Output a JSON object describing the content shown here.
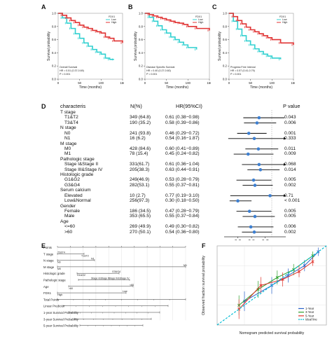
{
  "panels": {
    "A": {
      "letter": "A",
      "ylabel": "Survival probability",
      "xlabel": "Time (months)",
      "legend_title": "FDX1",
      "legend": [
        "Low",
        "High"
      ],
      "stats_name": "Overall Survival",
      "stats_hr": "HR = 0.51 (0.37-0.69)",
      "stats_p": "P < 0.001",
      "xticks": [
        "0",
        "50",
        "100",
        "150"
      ],
      "yticks": [
        "0.0",
        "0.2",
        "0.4",
        "0.6",
        "0.8",
        "1.0"
      ]
    },
    "B": {
      "letter": "B",
      "ylabel": "Survival probability",
      "xlabel": "Time (months)",
      "legend_title": "FDX1",
      "legend": [
        "Low",
        "High"
      ],
      "stats_name": "Disease Specific Survival",
      "stats_hr": "HR = 0.40 (0.27-0.60)",
      "stats_p": "P < 0.001",
      "xticks": [
        "0",
        "50",
        "100",
        "150"
      ],
      "yticks": [
        "0.0",
        "0.2",
        "0.4",
        "0.6",
        "0.8",
        "1.0"
      ]
    },
    "C": {
      "letter": "C",
      "ylabel": "Survival probability",
      "xlabel": "Time (months)",
      "legend_title": "FDX1",
      "legend": [
        "Low",
        "High"
      ],
      "stats_name": "Progress Free Interval",
      "stats_hr": "HR = 0.57 (0.41-0.79)",
      "stats_p": "P < 0.001",
      "xticks": [
        "0",
        "50",
        "100",
        "150"
      ],
      "yticks": [
        "0.0",
        "0.2",
        "0.4",
        "0.6",
        "0.8",
        "1.0"
      ]
    },
    "D": {
      "letter": "D"
    },
    "E": {
      "letter": "E"
    },
    "F": {
      "letter": "F"
    }
  },
  "forest": {
    "headers": {
      "characteris": "characteris",
      "n": "N(%)",
      "hr": "HR(95%CI)",
      "p": "P value"
    },
    "rows": [
      {
        "label": "T stage",
        "n": "",
        "hr": "",
        "p": "",
        "indent": 0
      },
      {
        "label": "T1&T2",
        "n": "349 (64.8)",
        "hr": "0.61 (0.38−0.98)",
        "p": "0.043",
        "indent": 1,
        "est": 0.61,
        "lo": 0.38,
        "hi": 0.98
      },
      {
        "label": "T3&T4",
        "n": "190 (35.2)",
        "hr": "0.58 (0.39−0.86)",
        "p": "0.006",
        "indent": 1,
        "est": 0.58,
        "lo": 0.39,
        "hi": 0.86
      },
      {
        "label": "N stage",
        "n": "",
        "hr": "",
        "p": "",
        "indent": 0
      },
      {
        "label": "N0",
        "n": "241 (93.8)",
        "hr": "0.46 (0.29−0.72)",
        "p": "0.001",
        "indent": 1,
        "est": 0.46,
        "lo": 0.29,
        "hi": 0.72
      },
      {
        "label": "N1",
        "n": "16 (6.2)",
        "hr": "0.54 (0.16−1.87)",
        "p": "0.333",
        "indent": 1,
        "est": 0.54,
        "lo": 0.16,
        "hi": 1.87
      },
      {
        "label": "M stage",
        "n": "",
        "hr": "",
        "p": "",
        "indent": 0
      },
      {
        "label": "M0",
        "n": "428 (84.6)",
        "hr": "0.60 (0.41−0.89)",
        "p": "0.011",
        "indent": 1,
        "est": 0.6,
        "lo": 0.41,
        "hi": 0.89
      },
      {
        "label": "M1",
        "n": "78 (15.4)",
        "hr": "0.45 (0.24−0.82)",
        "p": "0.009",
        "indent": 1,
        "est": 0.45,
        "lo": 0.24,
        "hi": 0.82
      },
      {
        "label": "Pathologic stage",
        "n": "",
        "hr": "",
        "p": "",
        "indent": 0
      },
      {
        "label": "Stage I&Stage II",
        "n": "331(61.7)",
        "hr": "0.61 (0.36−1.04)",
        "p": "0.068",
        "indent": 1,
        "est": 0.61,
        "lo": 0.36,
        "hi": 1.04
      },
      {
        "label": "Stage III&Stage IV",
        "n": "205(38.3)",
        "hr": "0.63 (0.44−0.91)",
        "p": "0.014",
        "indent": 1,
        "est": 0.63,
        "lo": 0.44,
        "hi": 0.91
      },
      {
        "label": "Histologic grade",
        "n": "",
        "hr": "",
        "p": "",
        "indent": 0
      },
      {
        "label": "G1&G2",
        "n": "249(46.9)",
        "hr": "0.53 (0.28−0.79)",
        "p": "0.005",
        "indent": 1,
        "est": 0.53,
        "lo": 0.28,
        "hi": 0.79
      },
      {
        "label": "G3&G4",
        "n": "282(53.1)",
        "hr": "0.55 (0.37−0.81)",
        "p": "0.002",
        "indent": 1,
        "est": 0.55,
        "lo": 0.37,
        "hi": 0.81
      },
      {
        "label": "Serum calcium",
        "n": "",
        "hr": "",
        "p": "",
        "indent": 0
      },
      {
        "label": "Elevated",
        "n": "10 (2.7)",
        "hr": "0.77 (0.19−3.10)",
        "p": "0.71",
        "indent": 1,
        "est": 0.77,
        "lo": 0.19,
        "hi": 3.1
      },
      {
        "label": "Low&Normal",
        "n": "256(97.3)",
        "hr": "0.30 (0.18−0.50)",
        "p": "< 0.001",
        "indent": 1,
        "est": 0.3,
        "lo": 0.18,
        "hi": 0.5
      },
      {
        "label": "Gender",
        "n": "",
        "hr": "",
        "p": "",
        "indent": 0
      },
      {
        "label": "Female",
        "n": "186 (34.5)",
        "hr": "0.47 (0.28−0.79)",
        "p": "0.005",
        "indent": 1,
        "est": 0.47,
        "lo": 0.28,
        "hi": 0.79
      },
      {
        "label": "Male",
        "n": "353 (65.5)",
        "hr": "0.55 (0.37−0.84)",
        "p": "0.005",
        "indent": 1,
        "est": 0.55,
        "lo": 0.37,
        "hi": 0.84
      },
      {
        "label": "Age",
        "n": "",
        "hr": "",
        "p": "",
        "indent": 0
      },
      {
        "label": "<=60",
        "n": "269 (49.9)",
        "hr": "0.49 (0.30−0.82)",
        "p": "0.006",
        "indent": 1,
        "est": 0.49,
        "lo": 0.3,
        "hi": 0.82
      },
      {
        "label": ">60",
        "n": "270 (50.1)",
        "hr": "0.54 (0.36−0.80)",
        "p": "0.002",
        "indent": 1,
        "est": 0.54,
        "lo": 0.36,
        "hi": 0.8
      }
    ],
    "axis_ticks": [
      "0.3",
      "0.5",
      "0.7"
    ],
    "point_color": "#3d7fd0"
  },
  "nomogram": {
    "labels": [
      "Points",
      "T stage",
      "N stage",
      "M stage",
      "Histologic grade",
      "Pathologic stage",
      "Age",
      "FDX1",
      "Total Points",
      "Linear Predictor",
      "1-year Survival Probability",
      "3-year Survival Probability",
      "5-year Survival Probability"
    ],
    "items": {
      "t1": "T3&T4",
      "t2": "T1&T2",
      "n1": "N1",
      "n0": "N0",
      "m1": "M1",
      "m0": "M0",
      "g1": "G3&G4",
      "g2": "G1&G2",
      "s1": "Stage III&Stage IV",
      "s2": "Stage I&Stage II",
      "a1": ">60",
      "a2": "<60",
      "f1": "Low",
      "f2": "High"
    }
  },
  "calibration": {
    "ylabel": "Observed fraction survival probability",
    "xlabel": "Nomogram predicted survival probability",
    "legend": [
      "1-Year",
      "3-Year",
      "5-Year",
      "Ideal line"
    ],
    "colors": [
      "#2a62c9",
      "#2ca02c",
      "#e0342c",
      "#00bcd4"
    ]
  },
  "chart_data": [
    {
      "type": "line",
      "panel": "A",
      "title": "",
      "xlabel": "Time (months)",
      "ylabel": "Survival probability",
      "ylim": [
        0,
        1
      ],
      "xlim": [
        0,
        150
      ],
      "series": [
        {
          "name": "Low",
          "color": "#30d0d0",
          "x": [
            0,
            10,
            20,
            30,
            40,
            50,
            60,
            70,
            80,
            90,
            100,
            110,
            120,
            130
          ],
          "y": [
            1.0,
            0.93,
            0.85,
            0.77,
            0.69,
            0.62,
            0.55,
            0.5,
            0.45,
            0.41,
            0.38,
            0.32,
            0.3,
            0.3
          ]
        },
        {
          "name": "High",
          "color": "#e03333",
          "x": [
            0,
            10,
            20,
            30,
            40,
            50,
            60,
            70,
            80,
            90,
            100,
            110,
            120,
            130,
            150
          ],
          "y": [
            1.0,
            0.97,
            0.93,
            0.89,
            0.86,
            0.82,
            0.79,
            0.77,
            0.74,
            0.72,
            0.7,
            0.64,
            0.62,
            0.58,
            0.55
          ]
        }
      ]
    },
    {
      "type": "line",
      "panel": "B",
      "title": "",
      "xlabel": "Time (months)",
      "ylabel": "Survival probability",
      "ylim": [
        0,
        1
      ],
      "xlim": [
        0,
        150
      ],
      "series": [
        {
          "name": "Low",
          "color": "#30d0d0",
          "x": [
            0,
            10,
            20,
            30,
            40,
            50,
            60,
            70,
            80,
            90,
            100,
            120
          ],
          "y": [
            1.0,
            0.94,
            0.88,
            0.81,
            0.75,
            0.7,
            0.64,
            0.6,
            0.56,
            0.52,
            0.48,
            0.45
          ]
        },
        {
          "name": "High",
          "color": "#e03333",
          "x": [
            0,
            10,
            20,
            30,
            40,
            50,
            60,
            70,
            80,
            90,
            100,
            120,
            150
          ],
          "y": [
            1.0,
            0.98,
            0.96,
            0.94,
            0.92,
            0.9,
            0.88,
            0.86,
            0.85,
            0.83,
            0.8,
            0.77,
            0.74
          ]
        }
      ]
    },
    {
      "type": "line",
      "panel": "C",
      "title": "",
      "xlabel": "Time (months)",
      "ylabel": "Survival probability",
      "ylim": [
        0,
        1
      ],
      "xlim": [
        0,
        150
      ],
      "series": [
        {
          "name": "Low",
          "color": "#30d0d0",
          "x": [
            0,
            10,
            20,
            30,
            40,
            50,
            60,
            70,
            80,
            90,
            100,
            120
          ],
          "y": [
            1.0,
            0.88,
            0.76,
            0.66,
            0.58,
            0.52,
            0.46,
            0.42,
            0.38,
            0.35,
            0.32,
            0.3
          ]
        },
        {
          "name": "High",
          "color": "#e03333",
          "x": [
            0,
            10,
            20,
            30,
            40,
            50,
            60,
            70,
            80,
            90,
            100,
            120,
            150
          ],
          "y": [
            1.0,
            0.95,
            0.89,
            0.84,
            0.79,
            0.75,
            0.72,
            0.69,
            0.66,
            0.63,
            0.6,
            0.55,
            0.52
          ]
        }
      ]
    },
    {
      "type": "line",
      "panel": "F",
      "title": "",
      "xlabel": "Nomogram predicted survival probability",
      "ylabel": "Observed fraction survival probability",
      "xlim": [
        0.6,
        1.0
      ],
      "ylim": [
        0.6,
        1.0
      ],
      "series": [
        {
          "name": "1-Year",
          "color": "#2a62c9",
          "x": [
            0.7,
            0.8,
            0.86,
            0.92,
            0.97
          ],
          "y": [
            0.72,
            0.8,
            0.85,
            0.9,
            0.97
          ]
        },
        {
          "name": "3-Year",
          "color": "#2ca02c",
          "x": [
            0.68,
            0.75,
            0.82,
            0.88,
            0.95
          ],
          "y": [
            0.7,
            0.78,
            0.84,
            0.88,
            0.95
          ]
        },
        {
          "name": "5-Year",
          "color": "#e0342c",
          "x": [
            0.68,
            0.76,
            0.84,
            0.9,
            0.95
          ],
          "y": [
            0.68,
            0.8,
            0.83,
            0.87,
            0.92
          ]
        },
        {
          "name": "Ideal line",
          "color": "#00bcd4",
          "x": [
            0.6,
            1.0
          ],
          "y": [
            0.6,
            1.0
          ]
        }
      ]
    }
  ]
}
